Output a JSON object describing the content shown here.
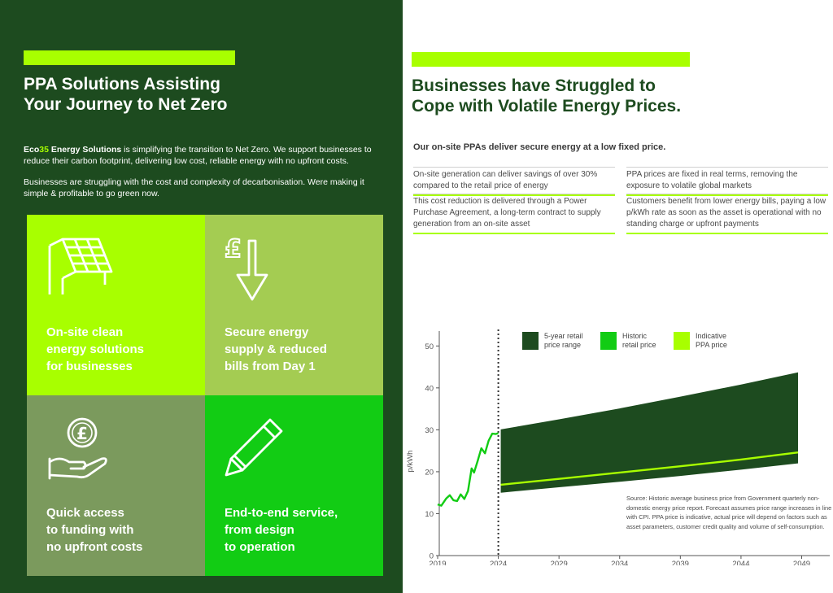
{
  "left": {
    "title": "PPA Solutions Assisting\nYour Journey to Net Zero",
    "intro": {
      "brand_prefix": "Eco",
      "brand_number": "35",
      "brand_suffix": " Energy Solutions",
      "p1_rest": " is simplifying the transition to Net Zero. We support businesses to reduce their carbon footprint, delivering low cost, reliable energy with no upfront costs.",
      "p2": "Businesses are struggling with the cost and complexity of decarbonisation. Were making it simple & profitable to go green now."
    },
    "tiles": [
      {
        "label": "On-site clean\nenergy solutions\nfor businesses",
        "icon": "solar-panel-icon",
        "color": "#a8ff00"
      },
      {
        "label": "Secure energy\nsupply & reduced\nbills from Day 1",
        "icon": "pound-down-arrow-icon",
        "color": "#a4cc52"
      },
      {
        "label": "Quick access\nto funding with\nno upfront costs",
        "icon": "hand-coin-icon",
        "color": "#7b9a5d"
      },
      {
        "label": "End-to-end service,\nfrom design\nto operation",
        "icon": "pencil-icon",
        "color": "#12cc14"
      }
    ]
  },
  "right": {
    "title": "Businesses have Struggled to\nCope with Volatile Energy Prices.",
    "subheading": "Our on-site PPAs deliver secure energy at a low fixed price.",
    "features": [
      "On-site generation can deliver savings of over 30% compared to the retail price of energy",
      "PPA prices are fixed in real terms, removing the exposure to volatile global markets",
      "This cost reduction is delivered through a Power Purchase Agreement, a long-term contract to supply generation from an on-site asset",
      "Customers benefit from lower energy bills, paying a low p/kWh rate as soon as the asset is operational with no standing charge or upfront payments"
    ],
    "source_note": "Source: Historic average business price from Government quarterly non-domestic energy price report. Forecast assumes price range increases in line with CPI. PPA price is indicative, actual price will depend on factors such as asset parameters, customer credit quality and volume of self-consumption."
  },
  "colors": {
    "dark_green": "#1d4b1f",
    "lime": "#a8ff00",
    "bright_green": "#12cc14"
  },
  "chart_data": {
    "type": "area",
    "xlabel": "",
    "ylabel": "p/kWh",
    "xlim": [
      2019,
      2050
    ],
    "ylim": [
      0,
      52
    ],
    "xticks": [
      2019,
      2024,
      2029,
      2034,
      2039,
      2044,
      2049
    ],
    "yticks": [
      0,
      10,
      20,
      30,
      40,
      50
    ],
    "divider_x": 2024,
    "grid": false,
    "legend_position": "top",
    "legend": [
      {
        "label": "5-year retail\nprice range",
        "color": "#1d4b1f"
      },
      {
        "label": "Historic\nretail price",
        "color": "#12cc14"
      },
      {
        "label": "Indicative\nPPA price",
        "color": "#a8ff00"
      }
    ],
    "series": [
      {
        "name": "5-year retail price range",
        "x": [
          2024.2,
          2029,
          2034,
          2039,
          2044,
          2048.7
        ],
        "upper": [
          30.1,
          32.5,
          35.1,
          37.9,
          40.8,
          43.7
        ],
        "lower": [
          15.0,
          16.3,
          17.6,
          19.0,
          20.5,
          22.0
        ]
      },
      {
        "name": "Historic retail price",
        "x": [
          2019.0,
          2019.3,
          2019.7,
          2020.0,
          2020.3,
          2020.6,
          2020.9,
          2021.2,
          2021.5,
          2021.8,
          2022.0,
          2022.3,
          2022.6,
          2022.9,
          2023.2,
          2023.5,
          2023.8,
          2024.0
        ],
        "y": [
          12.2,
          11.9,
          13.6,
          14.4,
          13.2,
          13.0,
          14.6,
          13.5,
          15.4,
          20.8,
          19.8,
          22.6,
          25.6,
          24.4,
          27.4,
          29.1,
          29.0,
          29.2
        ]
      },
      {
        "name": "Indicative PPA price",
        "x": [
          2024.2,
          2029,
          2034,
          2039,
          2044,
          2048.7
        ],
        "y": [
          16.9,
          18.3,
          19.8,
          21.3,
          22.9,
          24.6
        ]
      }
    ]
  }
}
